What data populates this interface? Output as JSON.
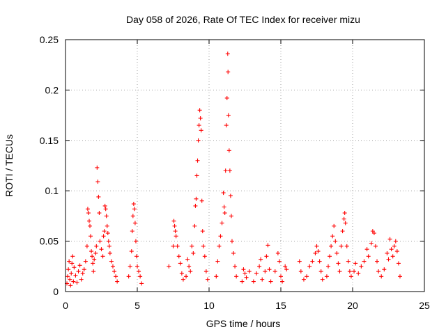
{
  "chart_data": {
    "type": "scatter",
    "title": "Day 058 of 2026, Rate Of TEC Index for receiver mizu",
    "xlabel": "GPS time / hours",
    "ylabel": "ROTI / TECUs",
    "xlim": [
      0,
      25
    ],
    "ylim": [
      0,
      0.25
    ],
    "xticks": [
      0,
      5,
      10,
      15,
      20,
      25
    ],
    "xtick_labels": [
      "0",
      "5",
      "10",
      "15",
      "20",
      "25"
    ],
    "yticks": [
      0,
      0.05,
      0.1,
      0.15,
      0.2,
      0.25
    ],
    "ytick_labels": [
      "0",
      "0.05",
      "0.1",
      "0.15",
      "0.2",
      "0.25"
    ],
    "grid": true,
    "marker": "+",
    "series": [
      {
        "name": "ROTI",
        "color": "#ff0000",
        "points": [
          [
            0.1,
            0.008
          ],
          [
            0.15,
            0.015
          ],
          [
            0.2,
            0.022
          ],
          [
            0.25,
            0.03
          ],
          [
            0.3,
            0.012
          ],
          [
            0.35,
            0.006
          ],
          [
            0.4,
            0.018
          ],
          [
            0.45,
            0.028
          ],
          [
            0.5,
            0.035
          ],
          [
            0.55,
            0.01
          ],
          [
            0.6,
            0.024
          ],
          [
            0.7,
            0.016
          ],
          [
            0.8,
            0.009
          ],
          [
            0.9,
            0.02
          ],
          [
            1.0,
            0.026
          ],
          [
            1.1,
            0.012
          ],
          [
            1.2,
            0.018
          ],
          [
            1.3,
            0.022
          ],
          [
            1.4,
            0.03
          ],
          [
            1.5,
            0.045
          ],
          [
            1.55,
            0.082
          ],
          [
            1.6,
            0.078
          ],
          [
            1.65,
            0.07
          ],
          [
            1.7,
            0.065
          ],
          [
            1.75,
            0.055
          ],
          [
            1.8,
            0.04
          ],
          [
            1.85,
            0.035
          ],
          [
            1.9,
            0.028
          ],
          [
            1.95,
            0.02
          ],
          [
            2.0,
            0.032
          ],
          [
            2.1,
            0.038
          ],
          [
            2.15,
            0.045
          ],
          [
            2.2,
            0.123
          ],
          [
            2.25,
            0.109
          ],
          [
            2.3,
            0.094
          ],
          [
            2.35,
            0.078
          ],
          [
            2.4,
            0.05
          ],
          [
            2.5,
            0.042
          ],
          [
            2.6,
            0.035
          ],
          [
            2.65,
            0.055
          ],
          [
            2.7,
            0.06
          ],
          [
            2.75,
            0.085
          ],
          [
            2.8,
            0.082
          ],
          [
            2.85,
            0.075
          ],
          [
            2.9,
            0.065
          ],
          [
            2.95,
            0.058
          ],
          [
            3.0,
            0.05
          ],
          [
            3.05,
            0.045
          ],
          [
            3.1,
            0.038
          ],
          [
            3.2,
            0.03
          ],
          [
            3.3,
            0.025
          ],
          [
            3.4,
            0.02
          ],
          [
            3.5,
            0.015
          ],
          [
            3.6,
            0.01
          ],
          [
            4.4,
            0.015
          ],
          [
            4.5,
            0.025
          ],
          [
            4.6,
            0.04
          ],
          [
            4.65,
            0.06
          ],
          [
            4.7,
            0.075
          ],
          [
            4.75,
            0.087
          ],
          [
            4.8,
            0.082
          ],
          [
            4.85,
            0.068
          ],
          [
            4.9,
            0.05
          ],
          [
            4.95,
            0.035
          ],
          [
            5.0,
            0.025
          ],
          [
            5.1,
            0.02
          ],
          [
            5.2,
            0.015
          ],
          [
            5.3,
            0.008
          ],
          [
            7.2,
            0.025
          ],
          [
            7.5,
            0.045
          ],
          [
            7.55,
            0.07
          ],
          [
            7.6,
            0.065
          ],
          [
            7.65,
            0.06
          ],
          [
            7.7,
            0.055
          ],
          [
            7.8,
            0.045
          ],
          [
            7.9,
            0.035
          ],
          [
            8.0,
            0.028
          ],
          [
            8.1,
            0.018
          ],
          [
            8.2,
            0.012
          ],
          [
            8.4,
            0.015
          ],
          [
            8.5,
            0.032
          ],
          [
            8.6,
            0.025
          ],
          [
            8.7,
            0.02
          ],
          [
            8.8,
            0.045
          ],
          [
            8.9,
            0.038
          ],
          [
            9.0,
            0.065
          ],
          [
            9.05,
            0.085
          ],
          [
            9.1,
            0.092
          ],
          [
            9.15,
            0.115
          ],
          [
            9.2,
            0.13
          ],
          [
            9.25,
            0.15
          ],
          [
            9.3,
            0.165
          ],
          [
            9.35,
            0.18
          ],
          [
            9.4,
            0.172
          ],
          [
            9.45,
            0.16
          ],
          [
            9.5,
            0.09
          ],
          [
            9.55,
            0.06
          ],
          [
            9.6,
            0.045
          ],
          [
            9.7,
            0.035
          ],
          [
            9.8,
            0.02
          ],
          [
            9.9,
            0.012
          ],
          [
            10.5,
            0.015
          ],
          [
            10.6,
            0.03
          ],
          [
            10.7,
            0.045
          ],
          [
            10.8,
            0.055
          ],
          [
            10.9,
            0.068
          ],
          [
            11.0,
            0.098
          ],
          [
            11.05,
            0.084
          ],
          [
            11.1,
            0.078
          ],
          [
            11.15,
            0.12
          ],
          [
            11.2,
            0.165
          ],
          [
            11.25,
            0.192
          ],
          [
            11.3,
            0.236
          ],
          [
            11.32,
            0.218
          ],
          [
            11.35,
            0.175
          ],
          [
            11.4,
            0.14
          ],
          [
            11.45,
            0.12
          ],
          [
            11.5,
            0.095
          ],
          [
            11.55,
            0.075
          ],
          [
            11.6,
            0.05
          ],
          [
            11.7,
            0.038
          ],
          [
            11.8,
            0.025
          ],
          [
            11.9,
            0.015
          ],
          [
            12.3,
            0.01
          ],
          [
            12.4,
            0.022
          ],
          [
            12.5,
            0.018
          ],
          [
            12.6,
            0.014
          ],
          [
            12.8,
            0.02
          ],
          [
            13.1,
            0.01
          ],
          [
            13.3,
            0.018
          ],
          [
            13.5,
            0.025
          ],
          [
            13.6,
            0.032
          ],
          [
            13.7,
            0.012
          ],
          [
            13.9,
            0.02
          ],
          [
            14.0,
            0.035
          ],
          [
            14.1,
            0.046
          ],
          [
            14.2,
            0.022
          ],
          [
            14.3,
            0.01
          ],
          [
            14.6,
            0.02
          ],
          [
            14.8,
            0.038
          ],
          [
            14.9,
            0.03
          ],
          [
            15.0,
            0.015
          ],
          [
            15.1,
            0.01
          ],
          [
            15.3,
            0.025
          ],
          [
            15.4,
            0.022
          ],
          [
            16.3,
            0.03
          ],
          [
            16.4,
            0.02
          ],
          [
            16.6,
            0.012
          ],
          [
            16.8,
            0.015
          ],
          [
            17.0,
            0.025
          ],
          [
            17.2,
            0.03
          ],
          [
            17.4,
            0.038
          ],
          [
            17.5,
            0.045
          ],
          [
            17.6,
            0.04
          ],
          [
            17.7,
            0.03
          ],
          [
            17.8,
            0.02
          ],
          [
            17.9,
            0.012
          ],
          [
            18.2,
            0.015
          ],
          [
            18.3,
            0.025
          ],
          [
            18.4,
            0.035
          ],
          [
            18.5,
            0.045
          ],
          [
            18.6,
            0.055
          ],
          [
            18.7,
            0.065
          ],
          [
            18.8,
            0.05
          ],
          [
            18.9,
            0.038
          ],
          [
            19.0,
            0.028
          ],
          [
            19.1,
            0.02
          ],
          [
            19.2,
            0.045
          ],
          [
            19.3,
            0.06
          ],
          [
            19.4,
            0.072
          ],
          [
            19.45,
            0.078
          ],
          [
            19.5,
            0.068
          ],
          [
            19.6,
            0.045
          ],
          [
            19.7,
            0.03
          ],
          [
            19.8,
            0.02
          ],
          [
            19.9,
            0.015
          ],
          [
            20.1,
            0.02
          ],
          [
            20.2,
            0.028
          ],
          [
            20.4,
            0.018
          ],
          [
            20.6,
            0.025
          ],
          [
            20.8,
            0.03
          ],
          [
            21.0,
            0.042
          ],
          [
            21.1,
            0.035
          ],
          [
            21.3,
            0.048
          ],
          [
            21.4,
            0.06
          ],
          [
            21.5,
            0.058
          ],
          [
            21.6,
            0.045
          ],
          [
            21.7,
            0.03
          ],
          [
            21.8,
            0.02
          ],
          [
            22.0,
            0.015
          ],
          [
            22.2,
            0.022
          ],
          [
            22.4,
            0.038
          ],
          [
            22.5,
            0.032
          ],
          [
            22.6,
            0.052
          ],
          [
            22.7,
            0.042
          ],
          [
            22.8,
            0.035
          ],
          [
            22.9,
            0.045
          ],
          [
            23.0,
            0.05
          ],
          [
            23.1,
            0.04
          ],
          [
            23.2,
            0.028
          ],
          [
            23.3,
            0.015
          ]
        ]
      }
    ]
  }
}
